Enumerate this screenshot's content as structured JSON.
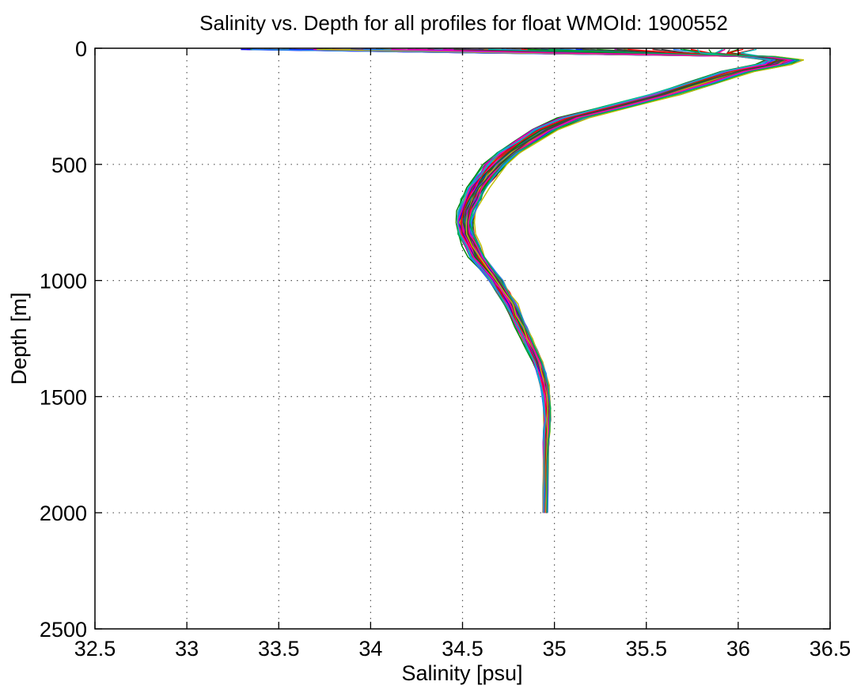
{
  "chart_data": {
    "type": "line",
    "title": "Salinity vs. Depth for all profiles for float WMOId: 1900552",
    "xlabel": "Salinity [psu]",
    "ylabel": "Depth [m]",
    "xlim": [
      32.5,
      36.5
    ],
    "ylim": [
      0,
      2500
    ],
    "y_reversed": true,
    "grid": true,
    "x_ticks": [
      32.5,
      33,
      33.5,
      34,
      34.5,
      35,
      35.5,
      36,
      36.5
    ],
    "x_tick_labels": [
      "32.5",
      "33",
      "33.5",
      "34",
      "34.5",
      "35",
      "35.5",
      "36",
      "36.5"
    ],
    "y_ticks": [
      0,
      500,
      1000,
      1500,
      2000,
      2500
    ],
    "y_tick_labels": [
      "0",
      "500",
      "1000",
      "1500",
      "2000",
      "2500"
    ],
    "mean_profile": {
      "depth": [
        5,
        20,
        35,
        50,
        70,
        100,
        150,
        200,
        250,
        300,
        350,
        400,
        450,
        500,
        550,
        600,
        650,
        700,
        750,
        800,
        850,
        900,
        950,
        1000,
        1050,
        1100,
        1150,
        1200,
        1250,
        1300,
        1350,
        1400,
        1450,
        1500,
        1550,
        1600,
        1650,
        1700,
        1800,
        1900,
        2000
      ],
      "salinity": [
        35.7,
        35.9,
        36.1,
        36.25,
        36.2,
        36.0,
        35.8,
        35.6,
        35.35,
        35.1,
        34.95,
        34.85,
        34.75,
        34.68,
        34.63,
        34.58,
        34.55,
        34.52,
        34.51,
        34.52,
        34.55,
        34.58,
        34.63,
        34.68,
        34.72,
        34.76,
        34.79,
        34.82,
        34.85,
        34.88,
        34.91,
        34.93,
        34.945,
        34.955,
        34.96,
        34.96,
        34.958,
        34.955,
        34.953,
        34.952,
        34.95
      ]
    },
    "series_count": 100,
    "colors": [
      "#0000ff",
      "#008000",
      "#ff0000",
      "#00bfbf",
      "#bf00bf",
      "#bfbf00",
      "#404040",
      "#1f77ff",
      "#ff00aa",
      "#00aa55"
    ]
  }
}
